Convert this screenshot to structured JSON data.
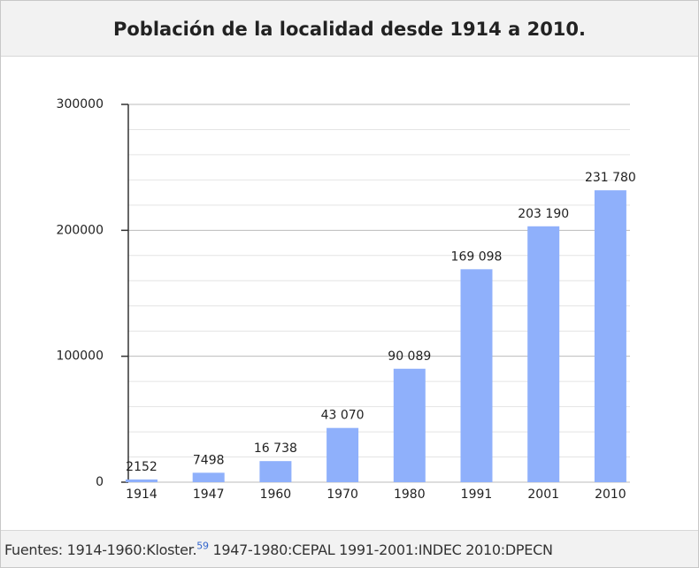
{
  "chart_data": {
    "type": "bar",
    "title": "Población de la localidad desde 1914 a 2010.",
    "categories": [
      "1914",
      "1947",
      "1960",
      "1970",
      "1980",
      "1991",
      "2001",
      "2010"
    ],
    "values": [
      2152,
      7498,
      16738,
      43070,
      90089,
      169098,
      203190,
      231780
    ],
    "value_labels": [
      "2152",
      "7498",
      "16 738",
      "43 070",
      "90 089",
      "169 098",
      "203 190",
      "231 780"
    ],
    "color": "#8fb0fb",
    "ylim": [
      0,
      300000
    ],
    "yticks": [
      0,
      100000,
      200000,
      300000
    ],
    "yminorticks": [
      20000,
      40000,
      60000,
      80000,
      120000,
      140000,
      160000,
      180000,
      220000,
      240000,
      260000,
      280000
    ],
    "grid": true
  },
  "footer": {
    "text": "Fuentes: 1914-1960:Kloster.",
    "ref": "59",
    "rest": " 1947-1980:CEPAL 1991-2001:INDEC 2010:DPECN"
  }
}
